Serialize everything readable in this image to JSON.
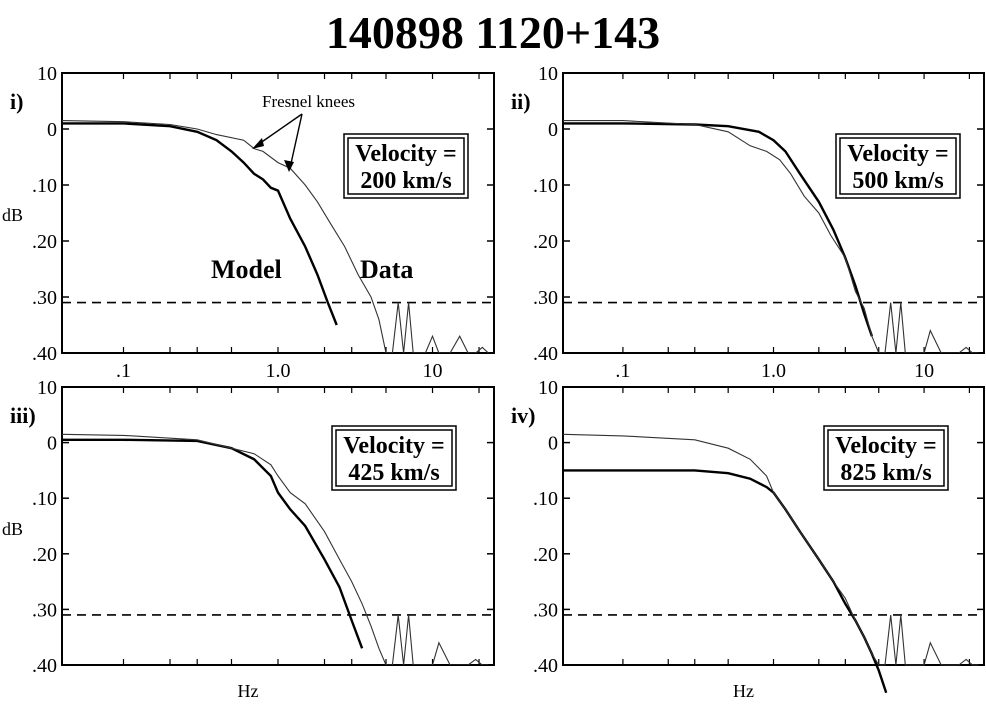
{
  "title": "140898  1120+143",
  "axis_names": {
    "y": "dB",
    "x": "Hz"
  },
  "annotations": {
    "fresnel": "Fresnel knees",
    "model": "Model",
    "data": "Data"
  },
  "chart_data": [
    {
      "type": "line",
      "panel": "i)",
      "box": [
        "Velocity =",
        "200 km/s"
      ],
      "xscale": "log",
      "xlim": [
        0.04,
        25
      ],
      "ylim": [
        -40,
        10
      ],
      "yticks": [
        "10",
        "0",
        ".10",
        ".20",
        ".30",
        ".40"
      ],
      "xticks": [
        ".1",
        "1.0",
        "10"
      ],
      "xlabel": "",
      "ylabel": "dB",
      "reference_level": -31,
      "series": [
        {
          "name": "Model",
          "style": "solid-thick",
          "x": [
            0.04,
            0.1,
            0.2,
            0.3,
            0.4,
            0.5,
            0.6,
            0.7,
            0.8,
            0.9,
            1.0,
            1.2,
            1.5,
            1.8,
            2.1,
            2.4
          ],
          "y": [
            1,
            1,
            0.5,
            -0.5,
            -2,
            -4,
            -6,
            -8,
            -9,
            -10.5,
            -11,
            -16,
            -21,
            -26,
            -31,
            -35
          ]
        },
        {
          "name": "Data",
          "style": "thin",
          "x": [
            0.04,
            0.1,
            0.2,
            0.3,
            0.4,
            0.6,
            0.7,
            0.8,
            1.0,
            1.2,
            1.5,
            1.8,
            2.2,
            2.7,
            3.3,
            4.0,
            4.5,
            5.0,
            5.5,
            6.0,
            6.5,
            7.0,
            7.5,
            8.0,
            9.0,
            10,
            11,
            12,
            13,
            15,
            17,
            19,
            21,
            23
          ],
          "y": [
            1.5,
            1.3,
            0.8,
            0,
            -1,
            -2,
            -3.5,
            -4,
            -6,
            -7,
            -10,
            -13,
            -17,
            -21,
            -26,
            -30,
            -34,
            -40,
            -40,
            -31,
            -40,
            -31,
            -40,
            -40,
            -40,
            -37,
            -40,
            -40,
            -40,
            -37,
            -40,
            -40,
            -39,
            -40
          ]
        }
      ]
    },
    {
      "type": "line",
      "panel": "ii)",
      "box": [
        "Velocity =",
        "500 km/s"
      ],
      "xscale": "log",
      "xlim": [
        0.04,
        25
      ],
      "ylim": [
        -40,
        10
      ],
      "yticks": [
        "10",
        "0",
        ".10",
        ".20",
        ".30",
        ".40"
      ],
      "xticks": [
        ".1",
        "1.0",
        "10"
      ],
      "xlabel": "",
      "ylabel": "",
      "reference_level": -31,
      "series": [
        {
          "name": "",
          "style": "solid-thick",
          "x": [
            0.04,
            0.1,
            0.3,
            0.5,
            0.8,
            1.0,
            1.2,
            1.5,
            2.0,
            2.5,
            3.0,
            3.5,
            4.0,
            4.5
          ],
          "y": [
            1,
            1,
            0.8,
            0.5,
            -0.5,
            -2,
            -4,
            -8,
            -13,
            -18,
            -23,
            -28,
            -33,
            -37
          ]
        },
        {
          "name": "",
          "style": "thin",
          "x": [
            0.04,
            0.1,
            0.3,
            0.5,
            0.7,
            0.9,
            1.1,
            1.3,
            1.6,
            2.0,
            2.4,
            3.0,
            3.5,
            4.0,
            4.5,
            5.0,
            5.5,
            6.0,
            6.5,
            7.0,
            7.5,
            8.0,
            9.0,
            10,
            11,
            13,
            15,
            17,
            19,
            21,
            23
          ],
          "y": [
            1.5,
            1.5,
            0.8,
            -0.5,
            -3,
            -4,
            -5.5,
            -8,
            -12,
            -15,
            -19,
            -23,
            -29,
            -32,
            -37,
            -40,
            -40,
            -31,
            -40,
            -31,
            -40,
            -40,
            -40,
            -40,
            -36,
            -40,
            -40,
            -40,
            -39,
            -40,
            -40
          ]
        }
      ]
    },
    {
      "type": "line",
      "panel": "iii)",
      "box": [
        "Velocity =",
        "425 km/s"
      ],
      "xscale": "log",
      "xlim": [
        0.04,
        25
      ],
      "ylim": [
        -40,
        10
      ],
      "yticks": [
        "10",
        "0",
        ".10",
        ".20",
        ".30",
        ".40"
      ],
      "xticks": [],
      "xlabel": "Hz",
      "ylabel": "dB",
      "reference_level": -31,
      "series": [
        {
          "name": "",
          "style": "solid-thick",
          "x": [
            0.04,
            0.1,
            0.3,
            0.5,
            0.7,
            0.9,
            1.0,
            1.2,
            1.5,
            2.0,
            2.5,
            3.0,
            3.5
          ],
          "y": [
            0.5,
            0.5,
            0.3,
            -1,
            -3,
            -6,
            -9,
            -12,
            -15,
            -21,
            -26,
            -32,
            -37
          ]
        },
        {
          "name": "",
          "style": "thin",
          "x": [
            0.04,
            0.1,
            0.3,
            0.5,
            0.7,
            0.9,
            1.0,
            1.2,
            1.5,
            2.0,
            2.5,
            3.0,
            3.5,
            4.0,
            4.5,
            5.0,
            5.5,
            6.0,
            6.5,
            7.0,
            7.5,
            8.0,
            9.0,
            10,
            11,
            13,
            15,
            17,
            19,
            21,
            23
          ],
          "y": [
            1.5,
            1.3,
            0.5,
            -1,
            -2,
            -4,
            -6,
            -9,
            -11,
            -16,
            -21,
            -25,
            -29,
            -33,
            -37,
            -40,
            -40,
            -31,
            -40,
            -31,
            -40,
            -40,
            -40,
            -40,
            -36,
            -40,
            -40,
            -40,
            -39,
            -40,
            -40
          ]
        }
      ]
    },
    {
      "type": "line",
      "panel": "iv)",
      "box": [
        "Velocity =",
        "825 km/s"
      ],
      "xscale": "log",
      "xlim": [
        0.04,
        25
      ],
      "ylim": [
        -40,
        10
      ],
      "yticks": [
        "10",
        "0",
        ".10",
        ".20",
        ".30",
        ".40"
      ],
      "xticks": [],
      "xlabel": "Hz",
      "ylabel": "",
      "reference_level": -31,
      "series": [
        {
          "name": "",
          "style": "solid-thick",
          "x": [
            0.04,
            0.1,
            0.3,
            0.5,
            0.7,
            0.9,
            1.0,
            1.2,
            1.5,
            2.0,
            2.5,
            3.0,
            3.5,
            4.0,
            4.5,
            5.0,
            5.6
          ],
          "y": [
            -5,
            -5,
            -5,
            -5.5,
            -6.5,
            -8,
            -9,
            -12,
            -16,
            -21,
            -25,
            -29,
            -32,
            -35,
            -38,
            -41,
            -45
          ]
        },
        {
          "name": "",
          "style": "thin",
          "x": [
            0.04,
            0.1,
            0.3,
            0.5,
            0.7,
            0.9,
            1.0,
            1.2,
            1.5,
            2.0,
            2.5,
            3.0,
            3.5,
            4.0,
            4.5,
            5.0,
            5.5,
            6.0,
            6.5,
            7.0,
            7.5,
            8.0,
            9.0,
            10,
            11,
            13,
            15,
            17,
            19,
            21,
            23
          ],
          "y": [
            1.5,
            1.2,
            0.5,
            -1,
            -3,
            -6,
            -9,
            -12,
            -16,
            -21,
            -25,
            -28,
            -32,
            -35,
            -38,
            -40,
            -40,
            -31,
            -40,
            -31,
            -40,
            -40,
            -40,
            -40,
            -36,
            -40,
            -40,
            -40,
            -39,
            -40,
            -40
          ]
        }
      ]
    }
  ]
}
